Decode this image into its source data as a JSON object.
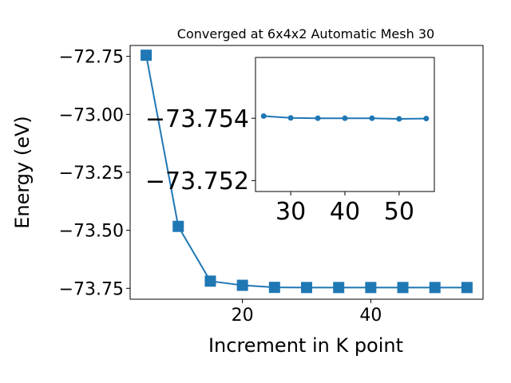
{
  "chart_data": [
    {
      "type": "line",
      "title": "Converged at 6x4x2 Automatic Mesh 30",
      "xlabel": "Increment in K point",
      "ylabel": "Energy (eV)",
      "x": [
        5,
        10,
        15,
        20,
        25,
        30,
        35,
        40,
        45,
        50,
        55
      ],
      "series": [
        {
          "values": [
            -72.745,
            -73.483,
            -73.719,
            -73.737,
            -73.746,
            -73.7465,
            -73.7466,
            -73.7466,
            -73.7466,
            -73.7466,
            -73.7466
          ]
        }
      ],
      "xlim": [
        2.5,
        57.5
      ],
      "ylim": [
        -73.797,
        -72.703
      ],
      "xticks": [
        20,
        40
      ],
      "yticks": [
        -72.75,
        -73.0,
        -73.25,
        -73.5,
        -73.75
      ],
      "xtick_labels": [
        "20",
        "40"
      ],
      "ytick_labels": [
        "−72.75",
        "−73.00",
        "−73.25",
        "−73.50",
        "−73.75"
      ],
      "marker": "square",
      "color": "#1f77b4",
      "grid": false
    },
    {
      "type": "line",
      "x": [
        25,
        30,
        35,
        40,
        45,
        50,
        55
      ],
      "series": [
        {
          "values": [
            -73.75407,
            -73.75401,
            -73.754,
            -73.754,
            -73.754,
            -73.75398,
            -73.75399
          ]
        }
      ],
      "xlim": [
        23.5,
        56.5
      ],
      "ylim": [
        -73.75165,
        -73.75595
      ],
      "xticks": [
        30,
        40,
        50
      ],
      "yticks": [
        -73.754,
        -73.752
      ],
      "xtick_labels": [
        "30",
        "40",
        "50"
      ],
      "ytick_labels": [
        "−73.754",
        "−73.752"
      ],
      "marker": "circle",
      "color": "#1f77b4",
      "grid": false,
      "inset": true
    }
  ]
}
